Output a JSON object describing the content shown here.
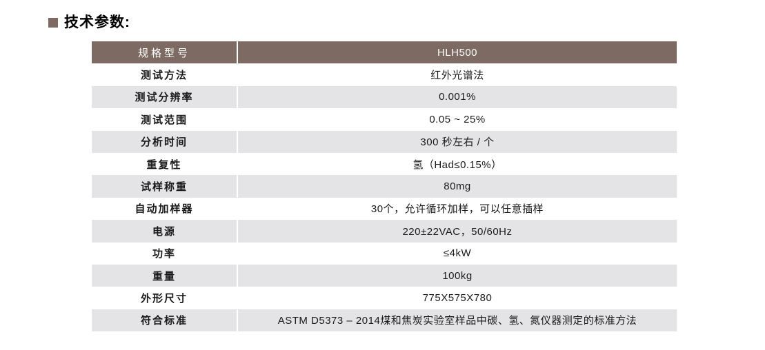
{
  "section": {
    "title": "技术参数:"
  },
  "table": {
    "header": {
      "label": "规格型号",
      "value": "HLH500"
    },
    "rows": [
      {
        "label": "测试方法",
        "value": "红外光谱法"
      },
      {
        "label": "测试分辨率",
        "value": "0.001%"
      },
      {
        "label": "测试范围",
        "value": "0.05 ~ 25%"
      },
      {
        "label": "分析时间",
        "value": "300 秒左右 / 个"
      },
      {
        "label": "重复性",
        "value": "氢（Had≤0.15%）"
      },
      {
        "label": "试样称重",
        "value": "80mg"
      },
      {
        "label": "自动加样器",
        "value": "30个，允许循环加样，可以任意插样"
      },
      {
        "label": "电源",
        "value": "220±22VAC，50/60Hz"
      },
      {
        "label": "功率",
        "value": "≤4kW"
      },
      {
        "label": "重量",
        "value": "100kg"
      },
      {
        "label": "外形尺寸",
        "value": "775X575X780"
      },
      {
        "label": "符合标准",
        "value": "ASTM D5373 – 2014煤和焦炭实验室样品中碳、氢、氮仪器测定的标准方法"
      }
    ]
  },
  "colors": {
    "header_bg": "#7D6B63",
    "row_bg": "#FFFFFF",
    "row_alt_bg": "#E4E4E6",
    "header_text": "#FFFFFF",
    "body_text": "#1A1A1A",
    "bullet": "#7D6B63",
    "divider": "#FFFFFF"
  }
}
